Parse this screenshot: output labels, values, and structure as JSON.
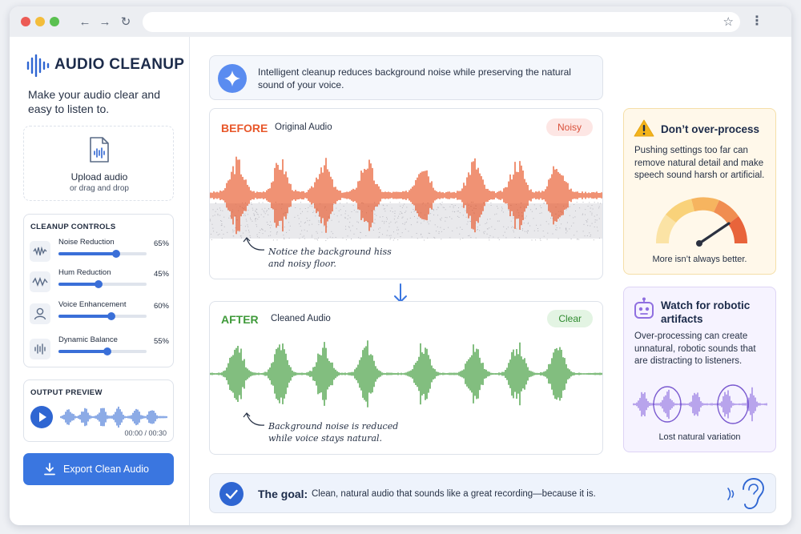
{
  "app": {
    "title": "AUDIO CLEANUP",
    "tagline": "Make your audio clear and easy to listen to."
  },
  "upload": {
    "title": "Upload audio",
    "subtitle": "or drag and drop"
  },
  "controls": {
    "heading": "CLEANUP CONTROLS",
    "items": [
      {
        "label": "Noise Reduction",
        "value": 65,
        "display": "65%",
        "icon": "noise-wave-icon"
      },
      {
        "label": "Hum Reduction",
        "value": 45,
        "display": "45%",
        "icon": "hum-wave-icon"
      },
      {
        "label": "Voice Enhancement",
        "value": 60,
        "display": "60%",
        "icon": "person-icon"
      },
      {
        "label": "Dynamic Balance",
        "value": 55,
        "display": "55%",
        "icon": "equalizer-icon"
      }
    ]
  },
  "preview": {
    "heading": "OUTPUT PREVIEW",
    "time": "00:00 / 00:30"
  },
  "export": {
    "label": "Export Clean Audio"
  },
  "intro": {
    "text": "Intelligent cleanup reduces background noise while preserving the natural sound of your voice."
  },
  "before": {
    "label": "BEFORE",
    "sublabel": "Original Audio",
    "badge": "Noisy",
    "note": "Notice the background hiss and noisy floor."
  },
  "after": {
    "label": "AFTER",
    "sublabel": "Cleaned Audio",
    "badge": "Clear",
    "note": "Background noise is reduced while voice stays natural."
  },
  "warning": {
    "title": "Don’t over-process",
    "text": "Pushing settings too far can remove natural detail and make speech sound harsh or artificial.",
    "caption": "More isn’t always better."
  },
  "robotic": {
    "title": "Watch for robotic artifacts",
    "text": "Over-processing can create unnatural, robotic sounds that are distracting to listeners.",
    "caption": "Lost natural variation"
  },
  "goal": {
    "title": "The goal:",
    "text": "Clean, natural audio that sounds like a great recording—because it is."
  },
  "colors": {
    "accent": "#3a76e0",
    "before": "#e8572a",
    "after": "#3f9a3a",
    "robot": "#8f6fe0"
  }
}
